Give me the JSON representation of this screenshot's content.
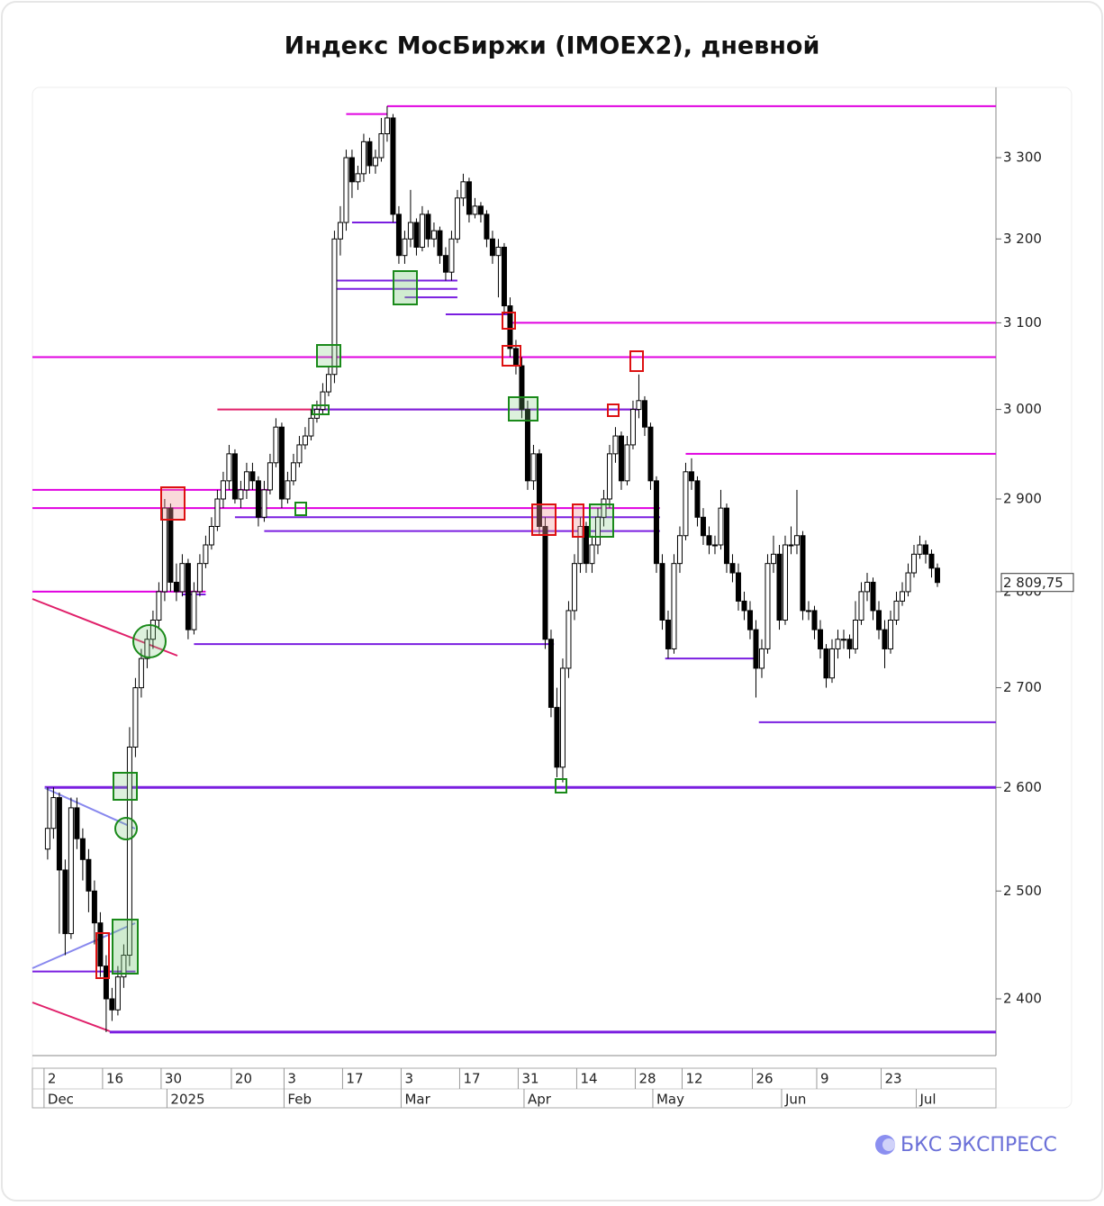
{
  "chart_data": {
    "type": "candlestick",
    "title": "Индекс МосБиржи (IMOEX2), дневной",
    "brand": "БКС ЭКСПРЕСС",
    "log_scale": true,
    "up_color": "#ffffff",
    "down_color": "#000000",
    "xlim": [
      -2.6,
      162
    ],
    "xticks": [
      {
        "value": 0,
        "label": "2"
      },
      {
        "value": 10,
        "label": "16"
      },
      {
        "value": 20,
        "label": "30"
      },
      {
        "value": 32,
        "label": "20"
      },
      {
        "value": 41,
        "label": "3"
      },
      {
        "value": 51,
        "label": "17"
      },
      {
        "value": 61,
        "label": "3"
      },
      {
        "value": 71,
        "label": "17"
      },
      {
        "value": 81,
        "label": "31"
      },
      {
        "value": 91,
        "label": "14"
      },
      {
        "value": 101,
        "label": "28"
      },
      {
        "value": 109,
        "label": "12"
      },
      {
        "value": 121,
        "label": "26"
      },
      {
        "value": 132,
        "label": "9"
      },
      {
        "value": 143,
        "label": "23"
      }
    ],
    "month_ticks": [
      {
        "value": 0,
        "label": "Dec"
      },
      {
        "value": 21,
        "label": "2025"
      },
      {
        "value": 41,
        "label": "Feb"
      },
      {
        "value": 61,
        "label": "Mar"
      },
      {
        "value": 82,
        "label": "Apr"
      },
      {
        "value": 104,
        "label": "May"
      },
      {
        "value": 126,
        "label": "Jun"
      },
      {
        "value": 149,
        "label": "Jul"
      }
    ],
    "ylim": [
      2349,
      3389
    ],
    "yticks": [
      {
        "value": 2400,
        "label": "2 400"
      },
      {
        "value": 2500,
        "label": "2 500"
      },
      {
        "value": 2600,
        "label": "2 600"
      },
      {
        "value": 2700,
        "label": "2 700"
      },
      {
        "value": 2800,
        "label": "2 800"
      },
      {
        "value": 2900,
        "label": "2 900"
      },
      {
        "value": 3000,
        "label": "3 000"
      },
      {
        "value": 3100,
        "label": "3 100"
      },
      {
        "value": 3200,
        "label": "3 200"
      },
      {
        "value": 3300,
        "label": "3 300"
      }
    ],
    "last_price": {
      "value": 2809.75,
      "label": "2 809,75"
    },
    "levels": [
      {
        "value": 3365,
        "from": 58,
        "to": 162,
        "color": "#e000e0"
      },
      {
        "value": 3355,
        "from": 51,
        "to": 58,
        "color": "#e000e0"
      },
      {
        "value": 3100,
        "from": 79,
        "to": 162,
        "color": "#e000e0"
      },
      {
        "value": 3110,
        "from": 68,
        "to": 79,
        "color": "#7a1ee0"
      },
      {
        "value": 3060,
        "from": -2.6,
        "to": 162,
        "color": "#e000e0"
      },
      {
        "value": 3000,
        "from": 29,
        "to": 101,
        "color": "#e0206a"
      },
      {
        "value": 3000,
        "from": 45,
        "to": 101,
        "color": "#7a1ee0"
      },
      {
        "value": 2950,
        "from": 109,
        "to": 162,
        "color": "#e000e0"
      },
      {
        "value": 2910,
        "from": -2.6,
        "to": 38,
        "color": "#e000e0"
      },
      {
        "value": 2890,
        "from": -2.6,
        "to": 104.6,
        "color": "#e000e0"
      },
      {
        "value": 2880,
        "from": 32,
        "to": 104.6,
        "color": "#7a1ee0"
      },
      {
        "value": 2865,
        "from": 37,
        "to": 104.6,
        "color": "#7a1ee0"
      },
      {
        "value": 2800,
        "from": -2.6,
        "to": 27,
        "color": "#e000e0"
      },
      {
        "value": 2797,
        "from": 23,
        "to": 27,
        "color": "#7a1ee0"
      },
      {
        "value": 2745,
        "from": 25,
        "to": 86.5,
        "color": "#7a1ee0"
      },
      {
        "value": 2730,
        "from": 105.5,
        "to": 121,
        "color": "#7a1ee0"
      },
      {
        "value": 2665,
        "from": 121.5,
        "to": 162,
        "color": "#7a1ee0"
      },
      {
        "value": 2600,
        "from": -0.5,
        "to": 162,
        "color": "#7a1ee0"
      },
      {
        "value": 2425,
        "from": -2.6,
        "to": 15,
        "color": "#7a1ee0"
      },
      {
        "value": 2370,
        "from": 10.6,
        "to": 162,
        "color": "#7a1ee0"
      },
      {
        "value": 3220,
        "from": 52,
        "to": 60,
        "color": "#7a1ee0"
      },
      {
        "value": 3150,
        "from": 49,
        "to": 70,
        "color": "#7a1ee0"
      },
      {
        "value": 3140,
        "from": 49,
        "to": 70,
        "color": "#7a1ee0"
      },
      {
        "value": 3130,
        "from": 61,
        "to": 70,
        "color": "#7a1ee0"
      }
    ],
    "ohlc": [
      [
        2540,
        2600,
        2530,
        2560
      ],
      [
        2560,
        2600,
        2550,
        2590
      ],
      [
        2590,
        2595,
        2460,
        2520
      ],
      [
        2520,
        2530,
        2440,
        2460
      ],
      [
        2460,
        2590,
        2455,
        2580
      ],
      [
        2580,
        2590,
        2540,
        2550
      ],
      [
        2550,
        2560,
        2510,
        2530
      ],
      [
        2530,
        2540,
        2480,
        2500
      ],
      [
        2500,
        2510,
        2450,
        2470
      ],
      [
        2470,
        2480,
        2420,
        2430
      ],
      [
        2430,
        2440,
        2370,
        2400
      ],
      [
        2400,
        2410,
        2380,
        2390
      ],
      [
        2390,
        2430,
        2385,
        2420
      ],
      [
        2420,
        2450,
        2410,
        2440
      ],
      [
        2440,
        2660,
        2430,
        2640
      ],
      [
        2640,
        2710,
        2630,
        2700
      ],
      [
        2700,
        2740,
        2690,
        2730
      ],
      [
        2730,
        2760,
        2720,
        2750
      ],
      [
        2750,
        2780,
        2740,
        2770
      ],
      [
        2770,
        2810,
        2760,
        2800
      ],
      [
        2800,
        2900,
        2790,
        2890
      ],
      [
        2890,
        2895,
        2800,
        2810
      ],
      [
        2810,
        2830,
        2790,
        2800
      ],
      [
        2800,
        2840,
        2795,
        2830
      ],
      [
        2830,
        2835,
        2750,
        2760
      ],
      [
        2760,
        2810,
        2755,
        2800
      ],
      [
        2800,
        2840,
        2795,
        2830
      ],
      [
        2830,
        2860,
        2825,
        2850
      ],
      [
        2850,
        2880,
        2845,
        2870
      ],
      [
        2870,
        2910,
        2865,
        2900
      ],
      [
        2900,
        2930,
        2890,
        2920
      ],
      [
        2920,
        2960,
        2910,
        2950
      ],
      [
        2950,
        2955,
        2895,
        2900
      ],
      [
        2900,
        2920,
        2890,
        2910
      ],
      [
        2910,
        2940,
        2900,
        2930
      ],
      [
        2930,
        2940,
        2910,
        2920
      ],
      [
        2920,
        2925,
        2870,
        2880
      ],
      [
        2880,
        2920,
        2875,
        2910
      ],
      [
        2910,
        2950,
        2905,
        2940
      ],
      [
        2940,
        2990,
        2935,
        2980
      ],
      [
        2980,
        2985,
        2890,
        2900
      ],
      [
        2900,
        2930,
        2895,
        2920
      ],
      [
        2920,
        2950,
        2915,
        2940
      ],
      [
        2940,
        2970,
        2935,
        2960
      ],
      [
        2960,
        2980,
        2955,
        2970
      ],
      [
        2970,
        3000,
        2965,
        2990
      ],
      [
        2990,
        3010,
        2985,
        3000
      ],
      [
        3000,
        3030,
        2995,
        3020
      ],
      [
        3020,
        3050,
        3015,
        3040
      ],
      [
        3040,
        3210,
        3030,
        3200
      ],
      [
        3200,
        3240,
        3180,
        3220
      ],
      [
        3220,
        3310,
        3210,
        3300
      ],
      [
        3300,
        3310,
        3250,
        3270
      ],
      [
        3270,
        3290,
        3260,
        3280
      ],
      [
        3280,
        3330,
        3270,
        3320
      ],
      [
        3320,
        3325,
        3280,
        3290
      ],
      [
        3290,
        3310,
        3280,
        3300
      ],
      [
        3300,
        3350,
        3295,
        3330
      ],
      [
        3330,
        3365,
        3320,
        3350
      ],
      [
        3350,
        3355,
        3220,
        3230
      ],
      [
        3230,
        3240,
        3170,
        3180
      ],
      [
        3180,
        3210,
        3170,
        3200
      ],
      [
        3200,
        3260,
        3190,
        3220
      ],
      [
        3220,
        3225,
        3180,
        3190
      ],
      [
        3190,
        3240,
        3185,
        3230
      ],
      [
        3230,
        3235,
        3190,
        3200
      ],
      [
        3200,
        3220,
        3190,
        3210
      ],
      [
        3210,
        3215,
        3170,
        3180
      ],
      [
        3180,
        3190,
        3150,
        3160
      ],
      [
        3160,
        3210,
        3150,
        3200
      ],
      [
        3200,
        3260,
        3195,
        3250
      ],
      [
        3250,
        3280,
        3240,
        3270
      ],
      [
        3270,
        3275,
        3220,
        3230
      ],
      [
        3230,
        3250,
        3225,
        3240
      ],
      [
        3240,
        3245,
        3220,
        3230
      ],
      [
        3230,
        3235,
        3190,
        3200
      ],
      [
        3200,
        3210,
        3170,
        3180
      ],
      [
        3180,
        3200,
        3130,
        3190
      ],
      [
        3190,
        3195,
        3110,
        3120
      ],
      [
        3120,
        3130,
        3060,
        3070
      ],
      [
        3070,
        3080,
        3040,
        3050
      ],
      [
        3050,
        3060,
        2990,
        3000
      ],
      [
        3000,
        3010,
        2910,
        2920
      ],
      [
        2920,
        2960,
        2910,
        2950
      ],
      [
        2950,
        2955,
        2860,
        2870
      ],
      [
        2870,
        2880,
        2740,
        2750
      ],
      [
        2750,
        2760,
        2670,
        2680
      ],
      [
        2680,
        2700,
        2610,
        2620
      ],
      [
        2620,
        2730,
        2605,
        2720
      ],
      [
        2720,
        2790,
        2710,
        2780
      ],
      [
        2780,
        2840,
        2770,
        2830
      ],
      [
        2830,
        2880,
        2820,
        2870
      ],
      [
        2870,
        2875,
        2820,
        2830
      ],
      [
        2830,
        2860,
        2820,
        2850
      ],
      [
        2850,
        2890,
        2840,
        2880
      ],
      [
        2880,
        2910,
        2870,
        2900
      ],
      [
        2900,
        2960,
        2890,
        2950
      ],
      [
        2950,
        2980,
        2940,
        2970
      ],
      [
        2970,
        2975,
        2910,
        2920
      ],
      [
        2920,
        2970,
        2915,
        2960
      ],
      [
        2960,
        3010,
        2955,
        3000
      ],
      [
        3000,
        3040,
        2990,
        3010
      ],
      [
        3010,
        3015,
        2970,
        2980
      ],
      [
        2980,
        2985,
        2910,
        2920
      ],
      [
        2920,
        2925,
        2820,
        2830
      ],
      [
        2830,
        2840,
        2760,
        2770
      ],
      [
        2770,
        2780,
        2730,
        2740
      ],
      [
        2740,
        2840,
        2735,
        2830
      ],
      [
        2830,
        2870,
        2820,
        2860
      ],
      [
        2860,
        2940,
        2855,
        2930
      ],
      [
        2930,
        2945,
        2910,
        2920
      ],
      [
        2920,
        2925,
        2870,
        2880
      ],
      [
        2880,
        2890,
        2850,
        2860
      ],
      [
        2860,
        2870,
        2840,
        2850
      ],
      [
        2850,
        2860,
        2840,
        2850
      ],
      [
        2850,
        2910,
        2845,
        2890
      ],
      [
        2890,
        2895,
        2820,
        2830
      ],
      [
        2830,
        2840,
        2810,
        2820
      ],
      [
        2820,
        2830,
        2780,
        2790
      ],
      [
        2790,
        2800,
        2770,
        2780
      ],
      [
        2780,
        2790,
        2750,
        2760
      ],
      [
        2760,
        2770,
        2690,
        2720
      ],
      [
        2720,
        2750,
        2710,
        2740
      ],
      [
        2740,
        2840,
        2735,
        2830
      ],
      [
        2830,
        2860,
        2820,
        2840
      ],
      [
        2840,
        2850,
        2760,
        2770
      ],
      [
        2770,
        2860,
        2765,
        2850
      ],
      [
        2850,
        2870,
        2840,
        2850
      ],
      [
        2850,
        2910,
        2840,
        2860
      ],
      [
        2860,
        2865,
        2770,
        2780
      ],
      [
        2780,
        2790,
        2770,
        2780
      ],
      [
        2780,
        2785,
        2750,
        2760
      ],
      [
        2760,
        2770,
        2730,
        2740
      ],
      [
        2740,
        2745,
        2700,
        2710
      ],
      [
        2710,
        2750,
        2705,
        2740
      ],
      [
        2740,
        2760,
        2730,
        2750
      ],
      [
        2750,
        2760,
        2740,
        2750
      ],
      [
        2750,
        2755,
        2730,
        2740
      ],
      [
        2740,
        2790,
        2735,
        2770
      ],
      [
        2770,
        2810,
        2765,
        2800
      ],
      [
        2800,
        2820,
        2790,
        2810
      ],
      [
        2810,
        2815,
        2770,
        2780
      ],
      [
        2780,
        2790,
        2750,
        2760
      ],
      [
        2760,
        2770,
        2720,
        2740
      ],
      [
        2740,
        2780,
        2735,
        2770
      ],
      [
        2770,
        2800,
        2765,
        2790
      ],
      [
        2790,
        2810,
        2785,
        2800
      ],
      [
        2800,
        2830,
        2795,
        2820
      ],
      [
        2820,
        2850,
        2815,
        2840
      ],
      [
        2840,
        2860,
        2835,
        2850
      ],
      [
        2850,
        2855,
        2830,
        2840
      ],
      [
        2840,
        2845,
        2815,
        2825
      ],
      [
        2825,
        2830,
        2805,
        2809.75
      ]
    ]
  }
}
